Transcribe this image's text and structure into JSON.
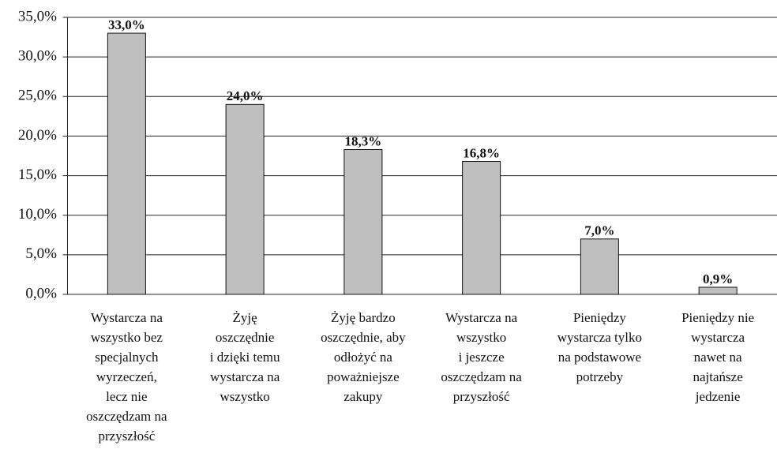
{
  "chart_data": {
    "type": "bar",
    "categories": [
      "Wystarcza na\nwszystko bez\nspecjalnych\nwyrzeczeń,\nlecz nie\noszczędzam na\nprzyszłość",
      "Żyję\noszczędnie\ni dzięki temu\nwystarcza na\nwszystko",
      "Żyję bardzo\noszczędnie, aby\nodłożyć na\npoważniejsze\nzakupy",
      "Wystarcza na\nwszystko\ni jeszcze\noszczędzam na\nprzyszłość",
      "Pieniędzy\nwystarcza tylko\nna podstawowe\npotrzeby",
      "Pieniędzy nie\nwystarcza\nnawet na\nnajtańsze\njedzenie"
    ],
    "values": [
      33.0,
      24.0,
      18.3,
      16.8,
      7.0,
      0.9
    ],
    "value_labels": [
      "33,0%",
      "24,0%",
      "18,3%",
      "16,8%",
      "7,0%",
      "0,9%"
    ],
    "color": "#bfbfbf",
    "ylim": [
      0,
      35
    ],
    "yticks": [
      {
        "value": 0,
        "label": "0,0%"
      },
      {
        "value": 5,
        "label": "5,0%"
      },
      {
        "value": 10,
        "label": "10,0%"
      },
      {
        "value": 15,
        "label": "15,0%"
      },
      {
        "value": 20,
        "label": "20,0%"
      },
      {
        "value": 25,
        "label": "25,0%"
      },
      {
        "value": 30,
        "label": "30,0%"
      },
      {
        "value": 35,
        "label": "35,0%"
      }
    ],
    "grid": true
  }
}
